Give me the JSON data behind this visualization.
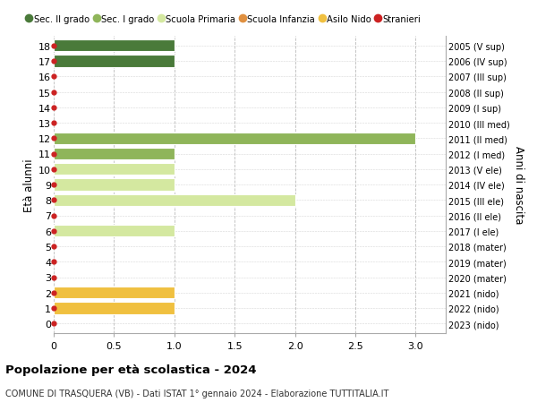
{
  "ages": [
    0,
    1,
    2,
    3,
    4,
    5,
    6,
    7,
    8,
    9,
    10,
    11,
    12,
    13,
    14,
    15,
    16,
    17,
    18
  ],
  "right_labels": [
    "2023 (nido)",
    "2022 (nido)",
    "2021 (nido)",
    "2020 (mater)",
    "2019 (mater)",
    "2018 (mater)",
    "2017 (I ele)",
    "2016 (II ele)",
    "2015 (III ele)",
    "2014 (IV ele)",
    "2013 (V ele)",
    "2012 (I med)",
    "2011 (II med)",
    "2010 (III med)",
    "2009 (I sup)",
    "2008 (II sup)",
    "2007 (III sup)",
    "2006 (IV sup)",
    "2005 (V sup)"
  ],
  "bar_values": [
    0,
    1,
    1,
    0,
    0,
    0,
    1,
    0,
    2,
    1,
    1,
    1,
    3,
    0,
    0,
    0,
    0,
    1,
    1
  ],
  "bar_colors": [
    "#f0c040",
    "#f0c040",
    "#f0c040",
    "#f0c040",
    "#f0c040",
    "#f0c040",
    "#d4e8a0",
    "#d4e8a0",
    "#d4e8a0",
    "#d4e8a0",
    "#d4e8a0",
    "#8fb55a",
    "#8fb55a",
    "#8fb55a",
    "#4a7a3a",
    "#4a7a3a",
    "#4a7a3a",
    "#4a7a3a",
    "#4a7a3a"
  ],
  "xlim": [
    0,
    3.25
  ],
  "xticks": [
    0,
    0.5,
    1.0,
    1.5,
    2.0,
    2.5,
    3.0
  ],
  "xtick_labels": [
    "0",
    "0.5",
    "1.0",
    "1.5",
    "2.0",
    "2.5",
    "3.0"
  ],
  "ylabel": "Età alunni",
  "right_ylabel": "Anni di nascita",
  "title": "Popolazione per età scolastica - 2024",
  "subtitle": "COMUNE DI TRASQUERA (VB) - Dati ISTAT 1° gennaio 2024 - Elaborazione TUTTITALIA.IT",
  "legend_items": [
    {
      "label": "Sec. II grado",
      "color": "#4a7a3a"
    },
    {
      "label": "Sec. I grado",
      "color": "#8fb55a"
    },
    {
      "label": "Scuola Primaria",
      "color": "#d4e8a0"
    },
    {
      "label": "Scuola Infanzia",
      "color": "#e09040"
    },
    {
      "label": "Asilo Nido",
      "color": "#f0c040"
    },
    {
      "label": "Stranieri",
      "color": "#cc2222"
    }
  ],
  "dot_color": "#cc2222",
  "background_color": "#ffffff",
  "grid_color": "#bbbbbb",
  "bar_height": 0.78
}
